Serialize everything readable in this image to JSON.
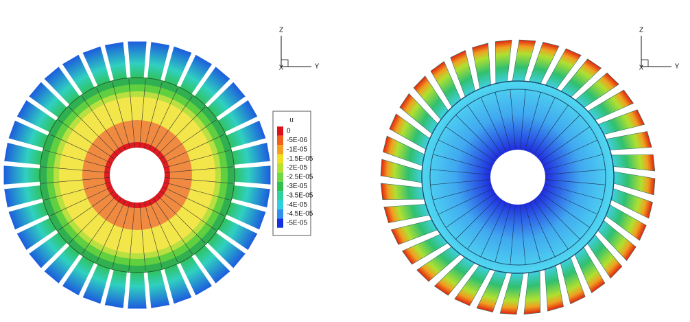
{
  "legend": {
    "title": "u",
    "entries": [
      {
        "label": "0",
        "color": "#e0101a"
      },
      {
        "label": "-5E-06",
        "color": "#f0601a"
      },
      {
        "label": "-1E-05",
        "color": "#f5a020"
      },
      {
        "label": "-1.5E-05",
        "color": "#f2e020"
      },
      {
        "label": "-2E-05",
        "color": "#b8e030"
      },
      {
        "label": "-2.5E-05",
        "color": "#70d840"
      },
      {
        "label": "-3E-05",
        "color": "#30c050"
      },
      {
        "label": "-3.5E-05",
        "color": "#30d0a0"
      },
      {
        "label": "-4E-05",
        "color": "#30d0e0"
      },
      {
        "label": "-4.5E-05",
        "color": "#3090f0"
      },
      {
        "label": "-5E-05",
        "color": "#1530e0"
      }
    ]
  },
  "triads": [
    {
      "z": "Z",
      "y": "Y",
      "x": "X"
    },
    {
      "z": "Z",
      "y": "Y",
      "x": "X"
    }
  ]
}
